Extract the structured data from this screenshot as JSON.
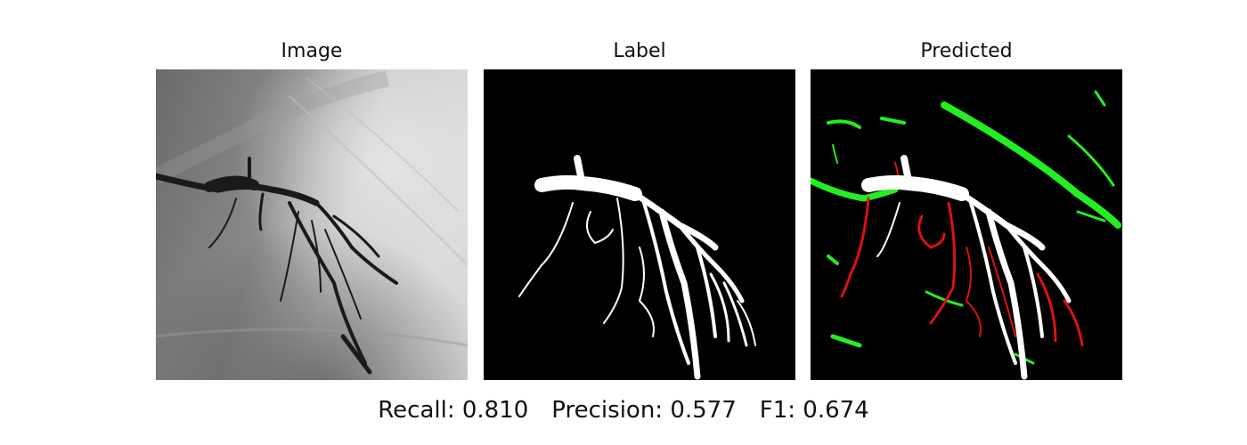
{
  "panels": [
    {
      "title": "Image"
    },
    {
      "title": "Label"
    },
    {
      "title": "Predicted"
    }
  ],
  "metrics": {
    "recall": "Recall: 0.810",
    "precision": "Precision: 0.577",
    "f1": "F1: 0.674"
  },
  "colors": {
    "true_positive": "#ffffff",
    "false_positive": "#22ee22",
    "false_negative": "#dd1111",
    "background": "#000000"
  }
}
